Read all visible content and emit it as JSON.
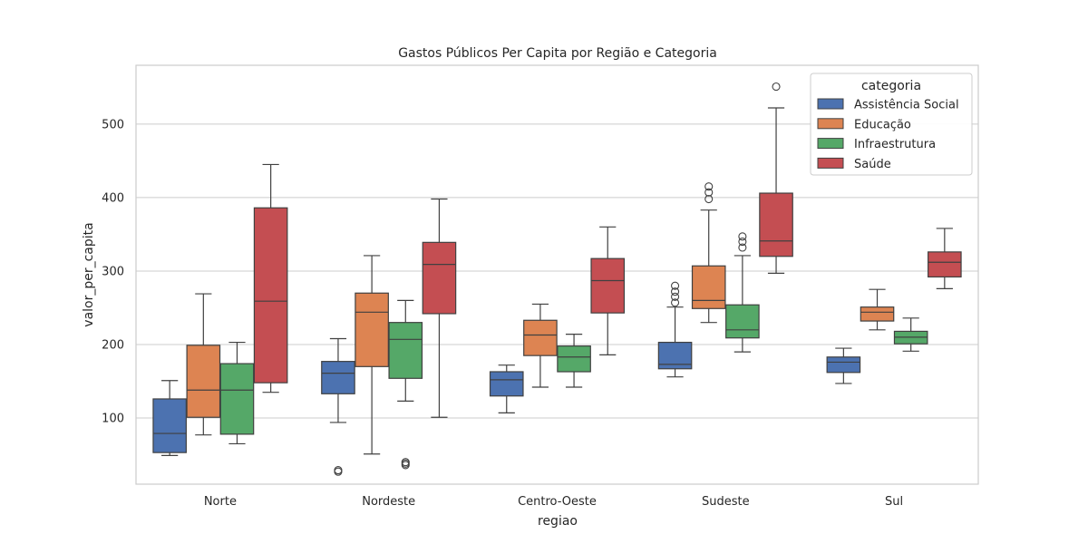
{
  "chart_data": {
    "type": "box",
    "title": "Gastos Públicos Per Capita por Região e Categoria",
    "xlabel": "regiao",
    "ylabel": "valor_per_capita",
    "ylim": [
      10,
      580
    ],
    "yticks": [
      100,
      200,
      300,
      400,
      500
    ],
    "grid": "horizontal",
    "legend": {
      "title": "categoria",
      "placement": "top-right"
    },
    "categories": [
      "Norte",
      "Nordeste",
      "Centro-Oeste",
      "Sudeste",
      "Sul"
    ],
    "series": [
      {
        "name": "Assistência Social",
        "color": "#4c72b0",
        "boxes": [
          {
            "whislo": 49,
            "q1": 53,
            "med": 79,
            "q3": 126,
            "whishi": 151,
            "fliers": []
          },
          {
            "whislo": 94,
            "q1": 133,
            "med": 161,
            "q3": 177,
            "whishi": 208,
            "fliers": [
              27,
              29
            ]
          },
          {
            "whislo": 107,
            "q1": 130,
            "med": 152,
            "q3": 163,
            "whishi": 172,
            "fliers": []
          },
          {
            "whislo": 156,
            "q1": 167,
            "med": 173,
            "q3": 203,
            "whishi": 251,
            "fliers": [
              257,
              265,
              272,
              280
            ]
          },
          {
            "whislo": 147,
            "q1": 162,
            "med": 176,
            "q3": 183,
            "whishi": 195,
            "fliers": []
          }
        ]
      },
      {
        "name": "Educação",
        "color": "#dd8452",
        "boxes": [
          {
            "whislo": 77,
            "q1": 101,
            "med": 138,
            "q3": 199,
            "whishi": 269,
            "fliers": []
          },
          {
            "whislo": 51,
            "q1": 170,
            "med": 244,
            "q3": 270,
            "whishi": 321,
            "fliers": []
          },
          {
            "whislo": 142,
            "q1": 185,
            "med": 213,
            "q3": 233,
            "whishi": 255,
            "fliers": []
          },
          {
            "whislo": 230,
            "q1": 249,
            "med": 260,
            "q3": 307,
            "whishi": 383,
            "fliers": [
              398,
              407,
              415
            ]
          },
          {
            "whislo": 220,
            "q1": 232,
            "med": 244,
            "q3": 251,
            "whishi": 275,
            "fliers": []
          }
        ]
      },
      {
        "name": "Infraestrutura",
        "color": "#55a868",
        "boxes": [
          {
            "whislo": 65,
            "q1": 78,
            "med": 138,
            "q3": 174,
            "whishi": 203,
            "fliers": []
          },
          {
            "whislo": 123,
            "q1": 154,
            "med": 207,
            "q3": 230,
            "whishi": 260,
            "fliers": [
              36,
              38,
              40
            ]
          },
          {
            "whislo": 142,
            "q1": 163,
            "med": 183,
            "q3": 198,
            "whishi": 214,
            "fliers": []
          },
          {
            "whislo": 190,
            "q1": 209,
            "med": 220,
            "q3": 254,
            "whishi": 321,
            "fliers": [
              332,
              340,
              347
            ]
          },
          {
            "whislo": 191,
            "q1": 201,
            "med": 210,
            "q3": 218,
            "whishi": 236,
            "fliers": []
          }
        ]
      },
      {
        "name": "Saúde",
        "color": "#c44e52",
        "boxes": [
          {
            "whislo": 135,
            "q1": 148,
            "med": 259,
            "q3": 386,
            "whishi": 445,
            "fliers": []
          },
          {
            "whislo": 101,
            "q1": 242,
            "med": 309,
            "q3": 339,
            "whishi": 398,
            "fliers": []
          },
          {
            "whislo": 186,
            "q1": 243,
            "med": 287,
            "q3": 317,
            "whishi": 360,
            "fliers": []
          },
          {
            "whislo": 297,
            "q1": 320,
            "med": 341,
            "q3": 406,
            "whishi": 522,
            "fliers": [
              551
            ]
          },
          {
            "whislo": 276,
            "q1": 292,
            "med": 312,
            "q3": 326,
            "whishi": 358,
            "fliers": []
          }
        ]
      }
    ]
  }
}
